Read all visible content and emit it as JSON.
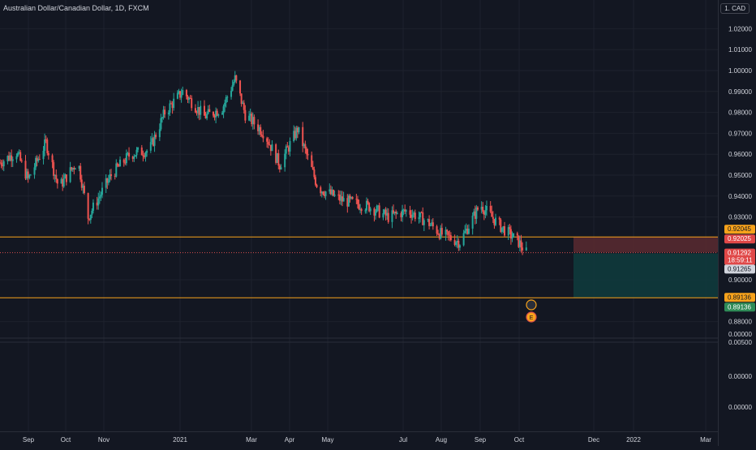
{
  "title": "Australian Dollar/Canadian Dollar, 1D, FXCM",
  "currency_unit": "1. CAD",
  "colors": {
    "background": "#131722",
    "up": "#26a69a",
    "down": "#ef5350",
    "grid": "#1e222d",
    "axis_text": "#d1d4dc",
    "line_orange": "#f7a21b",
    "line_red": "#d84d4d",
    "risk_zone": "#5a2a30",
    "reward_zone": "#0f3a3c"
  },
  "axis": {
    "price_labels": [
      "1.02000",
      "1.01000",
      "1.00000",
      "0.99000",
      "0.98000",
      "0.97000",
      "0.96000",
      "0.95000",
      "0.94000",
      "0.93000",
      "0.90000",
      "0.88000"
    ],
    "indicator_labels": [
      "0.00000",
      "0.00500",
      "0.00000",
      "0.00000"
    ],
    "time_labels": [
      "Sep",
      "Oct",
      "Nov",
      "2021",
      "Mar",
      "Apr",
      "May",
      "Jul",
      "Aug",
      "Sep",
      "Oct",
      "Dec",
      "2022",
      "Mar"
    ]
  },
  "price_badges": {
    "upper_orange": "0.92045",
    "red_line": "0.92025",
    "last_price": "0.91292",
    "countdown": "18:59:11",
    "bid": "0.91265",
    "lower_orange": "0.89136",
    "lower_green": "0.89136"
  },
  "chart_data": {
    "type": "candlestick",
    "symbol": "AUDCAD",
    "interval": "1D",
    "ylim": [
      0.878,
      1.028
    ],
    "x_start": "2020-08-25",
    "waypoints": [
      [
        "2020-08-25",
        0.956
      ],
      [
        "2020-09-07",
        0.961
      ],
      [
        "2020-09-16",
        0.948
      ],
      [
        "2020-09-30",
        0.9655
      ],
      [
        "2020-10-10",
        0.944
      ],
      [
        "2020-10-25",
        0.957
      ],
      [
        "2020-11-02",
        0.93
      ],
      [
        "2020-11-20",
        0.95
      ],
      [
        "2020-12-05",
        0.96
      ],
      [
        "2020-12-20",
        0.962
      ],
      [
        "2021-01-01",
        0.98
      ],
      [
        "2021-01-15",
        0.99
      ],
      [
        "2021-02-01",
        0.978
      ],
      [
        "2021-02-15",
        0.982
      ],
      [
        "2021-02-25",
        0.996
      ],
      [
        "2021-03-05",
        0.979
      ],
      [
        "2021-03-20",
        0.97
      ],
      [
        "2021-04-01",
        0.955
      ],
      [
        "2021-04-15",
        0.972
      ],
      [
        "2021-05-01",
        0.944
      ],
      [
        "2021-05-20",
        0.938
      ],
      [
        "2021-06-10",
        0.935
      ],
      [
        "2021-06-25",
        0.93
      ],
      [
        "2021-07-10",
        0.933
      ],
      [
        "2021-07-25",
        0.928
      ],
      [
        "2021-08-05",
        0.922
      ],
      [
        "2021-08-20",
        0.918
      ],
      [
        "2021-09-05",
        0.936
      ],
      [
        "2021-09-20",
        0.926
      ],
      [
        "2021-10-05",
        0.918
      ],
      [
        "2021-10-11",
        0.9129
      ]
    ],
    "x_end": "2022-03-10",
    "position": {
      "entry": 0.92045,
      "stop": 0.92025,
      "target": 0.89136,
      "zone_start": "2021-11-15",
      "zone_end": "2022-03-05"
    }
  }
}
